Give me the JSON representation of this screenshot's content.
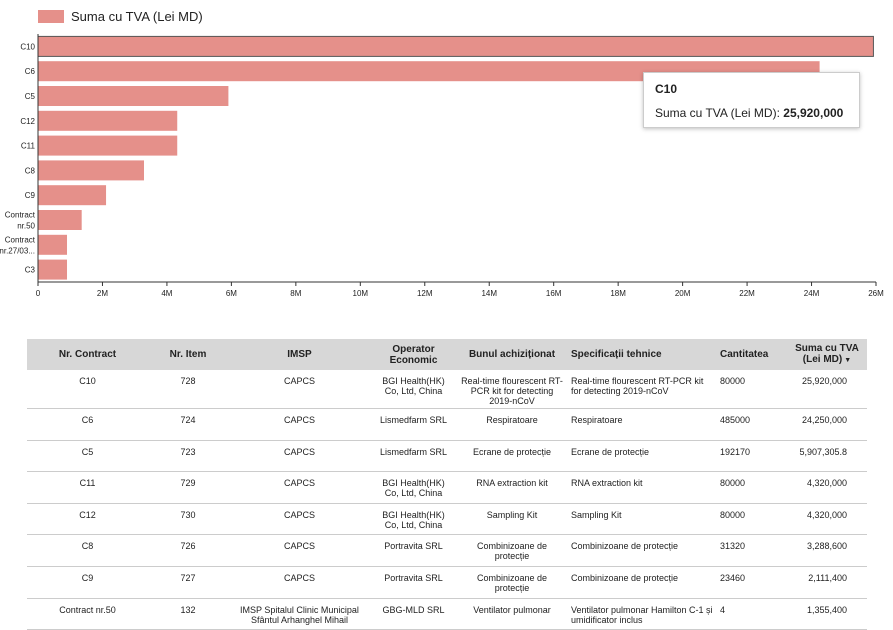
{
  "legend": {
    "label": "Suma cu TVA (Lei MD)",
    "color": "#e5908a"
  },
  "chart_data": {
    "type": "bar",
    "orientation": "horizontal",
    "categories": [
      "C10",
      "C6",
      "C5",
      "C12",
      "C11",
      "C8",
      "C9",
      "Contract nr.50",
      "Contract nr.27/03...",
      "C3"
    ],
    "category_labels": [
      [
        "C10"
      ],
      [
        "C6"
      ],
      [
        "C5"
      ],
      [
        "C12"
      ],
      [
        "C11"
      ],
      [
        "C8"
      ],
      [
        "C9"
      ],
      [
        "Contract",
        "nr.50"
      ],
      [
        "Contract",
        "nr.27/03..."
      ],
      [
        "C3"
      ]
    ],
    "series": [
      {
        "name": "Suma cu TVA (Lei MD)",
        "values": [
          25920000,
          24250000,
          5907305.8,
          4320000,
          4320000,
          3288600,
          2111400,
          1355400,
          900000,
          900000
        ]
      }
    ],
    "xlim": [
      0,
      26000000
    ],
    "xticks": [
      0,
      2000000,
      4000000,
      6000000,
      8000000,
      10000000,
      12000000,
      14000000,
      16000000,
      18000000,
      20000000,
      22000000,
      24000000,
      26000000
    ],
    "xtick_labels": [
      "0",
      "2M",
      "4M",
      "6M",
      "8M",
      "10M",
      "12M",
      "14M",
      "16M",
      "18M",
      "20M",
      "22M",
      "24M",
      "26M"
    ],
    "legend_position": "top-left",
    "grid": false,
    "bar_color": "#e5908a"
  },
  "tooltip": {
    "title": "C10",
    "label": "Suma cu TVA (Lei MD):",
    "value": "25,920,000"
  },
  "table": {
    "columns": [
      "Nr. Contract",
      "Nr. Item",
      "IMSP",
      "Operator Economic",
      "Bunul achiziționat",
      "Specificații tehnice",
      "Cantitatea",
      "Suma cu TVA (Lei MD)"
    ],
    "sort_indicator": "▼",
    "rows": [
      [
        "C10",
        "728",
        "CAPCS",
        "BGI Health(HK) Co, Ltd, China",
        "Real-time flourescent RT-PCR kit for detecting 2019-nCoV",
        "Real-time flourescent RT-PCR kit for detecting 2019-nCoV",
        "80000",
        "25,920,000"
      ],
      [
        "C6",
        "724",
        "CAPCS",
        "Lismedfarm SRL",
        "Respiratoare",
        "Respiratoare",
        "485000",
        "24,250,000"
      ],
      [
        "C5",
        "723",
        "CAPCS",
        "Lismedfarm SRL",
        "Ecrane de protecție",
        "Ecrane de protecție",
        "192170",
        "5,907,305.8"
      ],
      [
        "C11",
        "729",
        "CAPCS",
        "BGI Health(HK) Co, Ltd, China",
        "RNA extraction kit",
        "RNA extraction kit",
        "80000",
        "4,320,000"
      ],
      [
        "C12",
        "730",
        "CAPCS",
        "BGI Health(HK) Co, Ltd, China",
        "Sampling Kit",
        "Sampling Kit",
        "80000",
        "4,320,000"
      ],
      [
        "C8",
        "726",
        "CAPCS",
        "Portravita SRL",
        "Combinizoane de protecție",
        "Combinizoane de protecție",
        "31320",
        "3,288,600"
      ],
      [
        "C9",
        "727",
        "CAPCS",
        "Portravita SRL",
        "Combinizoane de protecție",
        "Combinizoane de protecție",
        "23460",
        "2,111,400"
      ],
      [
        "Contract nr.50",
        "132",
        "IMSP Spitalul Clinic Municipal Sfântul Arhanghel Mihail",
        "GBG-MLD SRL",
        "Ventilator pulmonar",
        "Ventilator pulmonar Hamilton C-1 și umidificator inclus",
        "4",
        "1,355,400"
      ]
    ]
  }
}
